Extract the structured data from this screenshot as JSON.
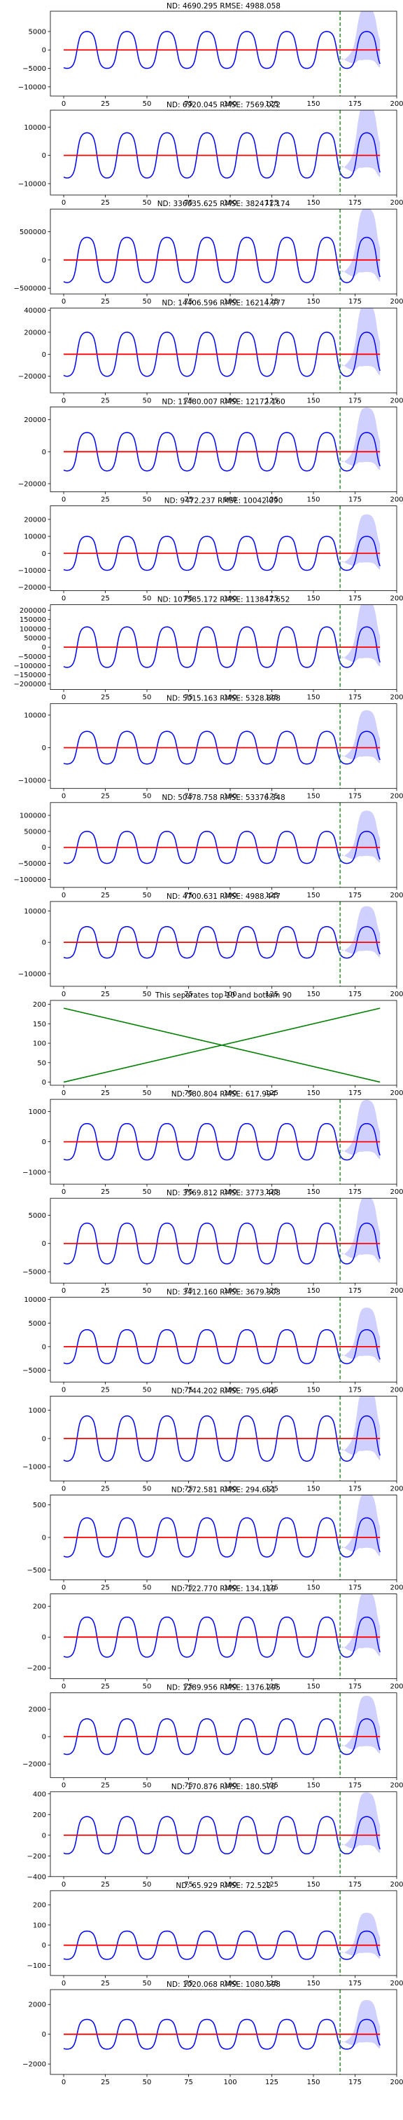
{
  "colors": {
    "forecast_line": "#0000ff",
    "forecast_band": "#aaaaff",
    "zero_line": "#ff0000",
    "split_line": "#008000",
    "separator_lines": "#008000",
    "axes": "#000000"
  },
  "chart_data": [
    {
      "type": "line",
      "title": "ND:  4690.295 RMSE:  4988.058",
      "amplitude": 5000,
      "xlim": [
        -8,
        200
      ],
      "ylim": [
        -12500,
        10500
      ],
      "xticks": [
        0,
        25,
        50,
        75,
        100,
        125,
        150,
        175,
        200
      ],
      "yticks": [
        -10000,
        -5000,
        0,
        5000
      ],
      "ytick_labels": [
        "−10000",
        "−5000",
        "0",
        "5000"
      ],
      "split_x": 166,
      "series": [
        {
          "values_desc": "forecast"
        },
        {
          "values_desc": "zero"
        }
      ]
    },
    {
      "type": "line",
      "title": "ND:  6920.045 RMSE:  7569.022",
      "amplitude": 8000,
      "xlim": [
        -8,
        200
      ],
      "ylim": [
        -14000,
        16000
      ],
      "xticks": [
        0,
        25,
        50,
        75,
        100,
        125,
        150,
        175,
        200
      ],
      "yticks": [
        -10000,
        0,
        10000
      ],
      "ytick_labels": [
        "−10000",
        "0",
        "10000"
      ],
      "split_x": 166
    },
    {
      "type": "line",
      "title": "ND:  336635.625 RMSE:  382471.174",
      "amplitude": 400000,
      "xlim": [
        -8,
        200
      ],
      "ylim": [
        -600000,
        900000
      ],
      "xticks": [
        0,
        25,
        50,
        75,
        100,
        125,
        150,
        175,
        200
      ],
      "yticks": [
        -500000,
        0,
        500000
      ],
      "ytick_labels": [
        "−500000",
        "0",
        "500000"
      ],
      "split_x": 166
    },
    {
      "type": "line",
      "title": "ND:  14406.596 RMSE:  16214.977",
      "amplitude": 20000,
      "xlim": [
        -8,
        200
      ],
      "ylim": [
        -35000,
        42000
      ],
      "xticks": [
        0,
        25,
        50,
        75,
        100,
        125,
        150,
        175,
        200
      ],
      "yticks": [
        -20000,
        0,
        20000,
        40000
      ],
      "ytick_labels": [
        "−20000",
        "0",
        "20000",
        "40000"
      ],
      "split_x": 166
    },
    {
      "type": "line",
      "title": "ND:  11480.007 RMSE:  12172.160",
      "amplitude": 12000,
      "xlim": [
        -8,
        200
      ],
      "ylim": [
        -25000,
        28000
      ],
      "xticks": [
        0,
        25,
        50,
        75,
        100,
        125,
        150,
        175,
        200
      ],
      "yticks": [
        -20000,
        0,
        20000
      ],
      "ytick_labels": [
        "−20000",
        "0",
        "20000"
      ],
      "split_x": 166
    },
    {
      "type": "line",
      "title": "ND:  9472.237 RMSE:  10042.090",
      "amplitude": 10000,
      "xlim": [
        -8,
        200
      ],
      "ylim": [
        -22000,
        28000
      ],
      "xticks": [
        0,
        25,
        50,
        75,
        100,
        125,
        150,
        175,
        200
      ],
      "yticks": [
        -20000,
        -10000,
        0,
        10000,
        20000
      ],
      "ytick_labels": [
        "−20000",
        "−10000",
        "0",
        "10000",
        "20000"
      ],
      "split_x": 166
    },
    {
      "type": "line",
      "title": "ND:  107585.172 RMSE:  113847.652",
      "amplitude": 110000,
      "xlim": [
        -8,
        200
      ],
      "ylim": [
        -230000,
        230000
      ],
      "xticks": [
        0,
        25,
        50,
        75,
        100,
        125,
        150,
        175,
        200
      ],
      "yticks": [
        -200000,
        -150000,
        -100000,
        -50000,
        0,
        50000,
        100000,
        150000,
        200000
      ],
      "ytick_labels": [
        "−200000",
        "−150000",
        "−100000",
        "−50000",
        "0",
        "50000",
        "100000",
        "150000",
        "200000"
      ],
      "split_x": 166
    },
    {
      "type": "line",
      "title": "ND:  5015.163 RMSE:  5328.898",
      "amplitude": 5000,
      "xlim": [
        -8,
        200
      ],
      "ylim": [
        -12500,
        13500
      ],
      "xticks": [
        0,
        25,
        50,
        75,
        100,
        125,
        150,
        175,
        200
      ],
      "yticks": [
        -10000,
        0,
        10000
      ],
      "ytick_labels": [
        "−10000",
        "0",
        "10000"
      ],
      "split_x": 166
    },
    {
      "type": "line",
      "title": "ND:  50478.758 RMSE:  53376.348",
      "amplitude": 50000,
      "xlim": [
        -8,
        200
      ],
      "ylim": [
        -125000,
        140000
      ],
      "xticks": [
        0,
        25,
        50,
        75,
        100,
        125,
        150,
        175,
        200
      ],
      "yticks": [
        -100000,
        -50000,
        0,
        50000,
        100000
      ],
      "ytick_labels": [
        "−100000",
        "−50000",
        "0",
        "50000",
        "100000"
      ],
      "split_x": 166
    },
    {
      "type": "line",
      "title": "ND:  4700.631 RMSE:  4988.447",
      "amplitude": 5000,
      "xlim": [
        -8,
        200
      ],
      "ylim": [
        -14000,
        13000
      ],
      "xticks": [
        0,
        25,
        50,
        75,
        100,
        125,
        150,
        175,
        200
      ],
      "yticks": [
        -10000,
        0,
        10000
      ],
      "ytick_labels": [
        "−10000",
        "0",
        "10000"
      ],
      "split_x": 166
    },
    {
      "type": "separator",
      "title": "This separates top 10 and bottom 90",
      "xlim": [
        -8,
        200
      ],
      "ylim": [
        -8,
        210
      ],
      "xticks": [
        0,
        25,
        50,
        75,
        100,
        125,
        150,
        175,
        200
      ],
      "yticks": [
        0,
        50,
        100,
        150,
        200
      ],
      "ytick_labels": [
        "0",
        "50",
        "100",
        "150",
        "200"
      ],
      "lines": [
        {
          "x": [
            0,
            190
          ],
          "y": [
            190,
            0
          ]
        },
        {
          "x": [
            0,
            190
          ],
          "y": [
            0,
            190
          ]
        }
      ]
    },
    {
      "type": "line",
      "title": "ND:  580.804 RMSE:  617.994",
      "amplitude": 600,
      "xlim": [
        -8,
        200
      ],
      "ylim": [
        -1400,
        1400
      ],
      "xticks": [
        0,
        25,
        50,
        75,
        100,
        125,
        150,
        175,
        200
      ],
      "yticks": [
        -1000,
        0,
        1000
      ],
      "ytick_labels": [
        "−1000",
        "0",
        "1000"
      ],
      "split_x": 166
    },
    {
      "type": "line",
      "title": "ND:  3569.812 RMSE:  3773.468",
      "amplitude": 3600,
      "xlim": [
        -8,
        200
      ],
      "ylim": [
        -7000,
        8000
      ],
      "xticks": [
        0,
        25,
        50,
        75,
        100,
        125,
        150,
        175,
        200
      ],
      "yticks": [
        -5000,
        0,
        5000
      ],
      "ytick_labels": [
        "−5000",
        "0",
        "5000"
      ],
      "split_x": 166
    },
    {
      "type": "line",
      "title": "ND:  3412.160 RMSE:  3679.303",
      "amplitude": 3600,
      "xlim": [
        -8,
        200
      ],
      "ylim": [
        -7500,
        10500
      ],
      "xticks": [
        0,
        25,
        50,
        75,
        100,
        125,
        150,
        175,
        200
      ],
      "yticks": [
        -5000,
        0,
        5000,
        10000
      ],
      "ytick_labels": [
        "−5000",
        "0",
        "5000",
        "10000"
      ],
      "split_x": 166
    },
    {
      "type": "line",
      "title": "ND:  744.202 RMSE:  795.646",
      "amplitude": 800,
      "xlim": [
        -8,
        200
      ],
      "ylim": [
        -1500,
        1500
      ],
      "xticks": [
        0,
        25,
        50,
        75,
        100,
        125,
        150,
        175,
        200
      ],
      "yticks": [
        -1000,
        0,
        1000
      ],
      "ytick_labels": [
        "−1000",
        "0",
        "1000"
      ],
      "split_x": 166
    },
    {
      "type": "line",
      "title": "ND:  272.581 RMSE:  294.651",
      "amplitude": 300,
      "xlim": [
        -8,
        200
      ],
      "ylim": [
        -650,
        650
      ],
      "xticks": [
        0,
        25,
        50,
        75,
        100,
        125,
        150,
        175,
        200
      ],
      "yticks": [
        -500,
        0,
        500
      ],
      "ytick_labels": [
        "−500",
        "0",
        "500"
      ],
      "split_x": 166
    },
    {
      "type": "line",
      "title": "ND:  122.770 RMSE:  134.119",
      "amplitude": 130,
      "xlim": [
        -8,
        200
      ],
      "ylim": [
        -270,
        280
      ],
      "xticks": [
        0,
        25,
        50,
        75,
        100,
        125,
        150,
        175,
        200
      ],
      "yticks": [
        -200,
        0,
        200
      ],
      "ytick_labels": [
        "−200",
        "0",
        "200"
      ],
      "split_x": 166
    },
    {
      "type": "line",
      "title": "ND:  1289.956 RMSE:  1376.295",
      "amplitude": 1300,
      "xlim": [
        -8,
        200
      ],
      "ylim": [
        -3000,
        3200
      ],
      "xticks": [
        0,
        25,
        50,
        75,
        100,
        125,
        150,
        175,
        200
      ],
      "yticks": [
        -2000,
        0,
        2000
      ],
      "ytick_labels": [
        "−2000",
        "0",
        "2000"
      ],
      "split_x": 166
    },
    {
      "type": "line",
      "title": "ND:  170.876 RMSE:  180.578",
      "amplitude": 180,
      "xlim": [
        -8,
        200
      ],
      "ylim": [
        -400,
        420
      ],
      "xticks": [
        0,
        25,
        50,
        75,
        100,
        125,
        150,
        175,
        200
      ],
      "yticks": [
        -400,
        -200,
        0,
        200,
        400
      ],
      "ytick_labels": [
        "−400",
        "−200",
        "0",
        "200",
        "400"
      ],
      "split_x": 166
    },
    {
      "type": "line",
      "title": "ND:  65.929 RMSE:  72.522",
      "amplitude": 70,
      "xlim": [
        -8,
        200
      ],
      "ylim": [
        -150,
        270
      ],
      "xticks": [
        0,
        25,
        50,
        75,
        100,
        125,
        150,
        175,
        200
      ],
      "yticks": [
        -100,
        0,
        100,
        200
      ],
      "ytick_labels": [
        "−100",
        "0",
        "100",
        "200"
      ],
      "split_x": 166
    },
    {
      "type": "line",
      "title": "ND:  1020.068 RMSE:  1080.598",
      "amplitude": 1000,
      "xlim": [
        -8,
        200
      ],
      "ylim": [
        -2700,
        3000
      ],
      "xticks": [
        0,
        25,
        50,
        75,
        100,
        125,
        150,
        175,
        200
      ],
      "yticks": [
        -2000,
        0,
        2000
      ],
      "ytick_labels": [
        "−2000",
        "0",
        "2000"
      ],
      "split_x": 166
    }
  ]
}
